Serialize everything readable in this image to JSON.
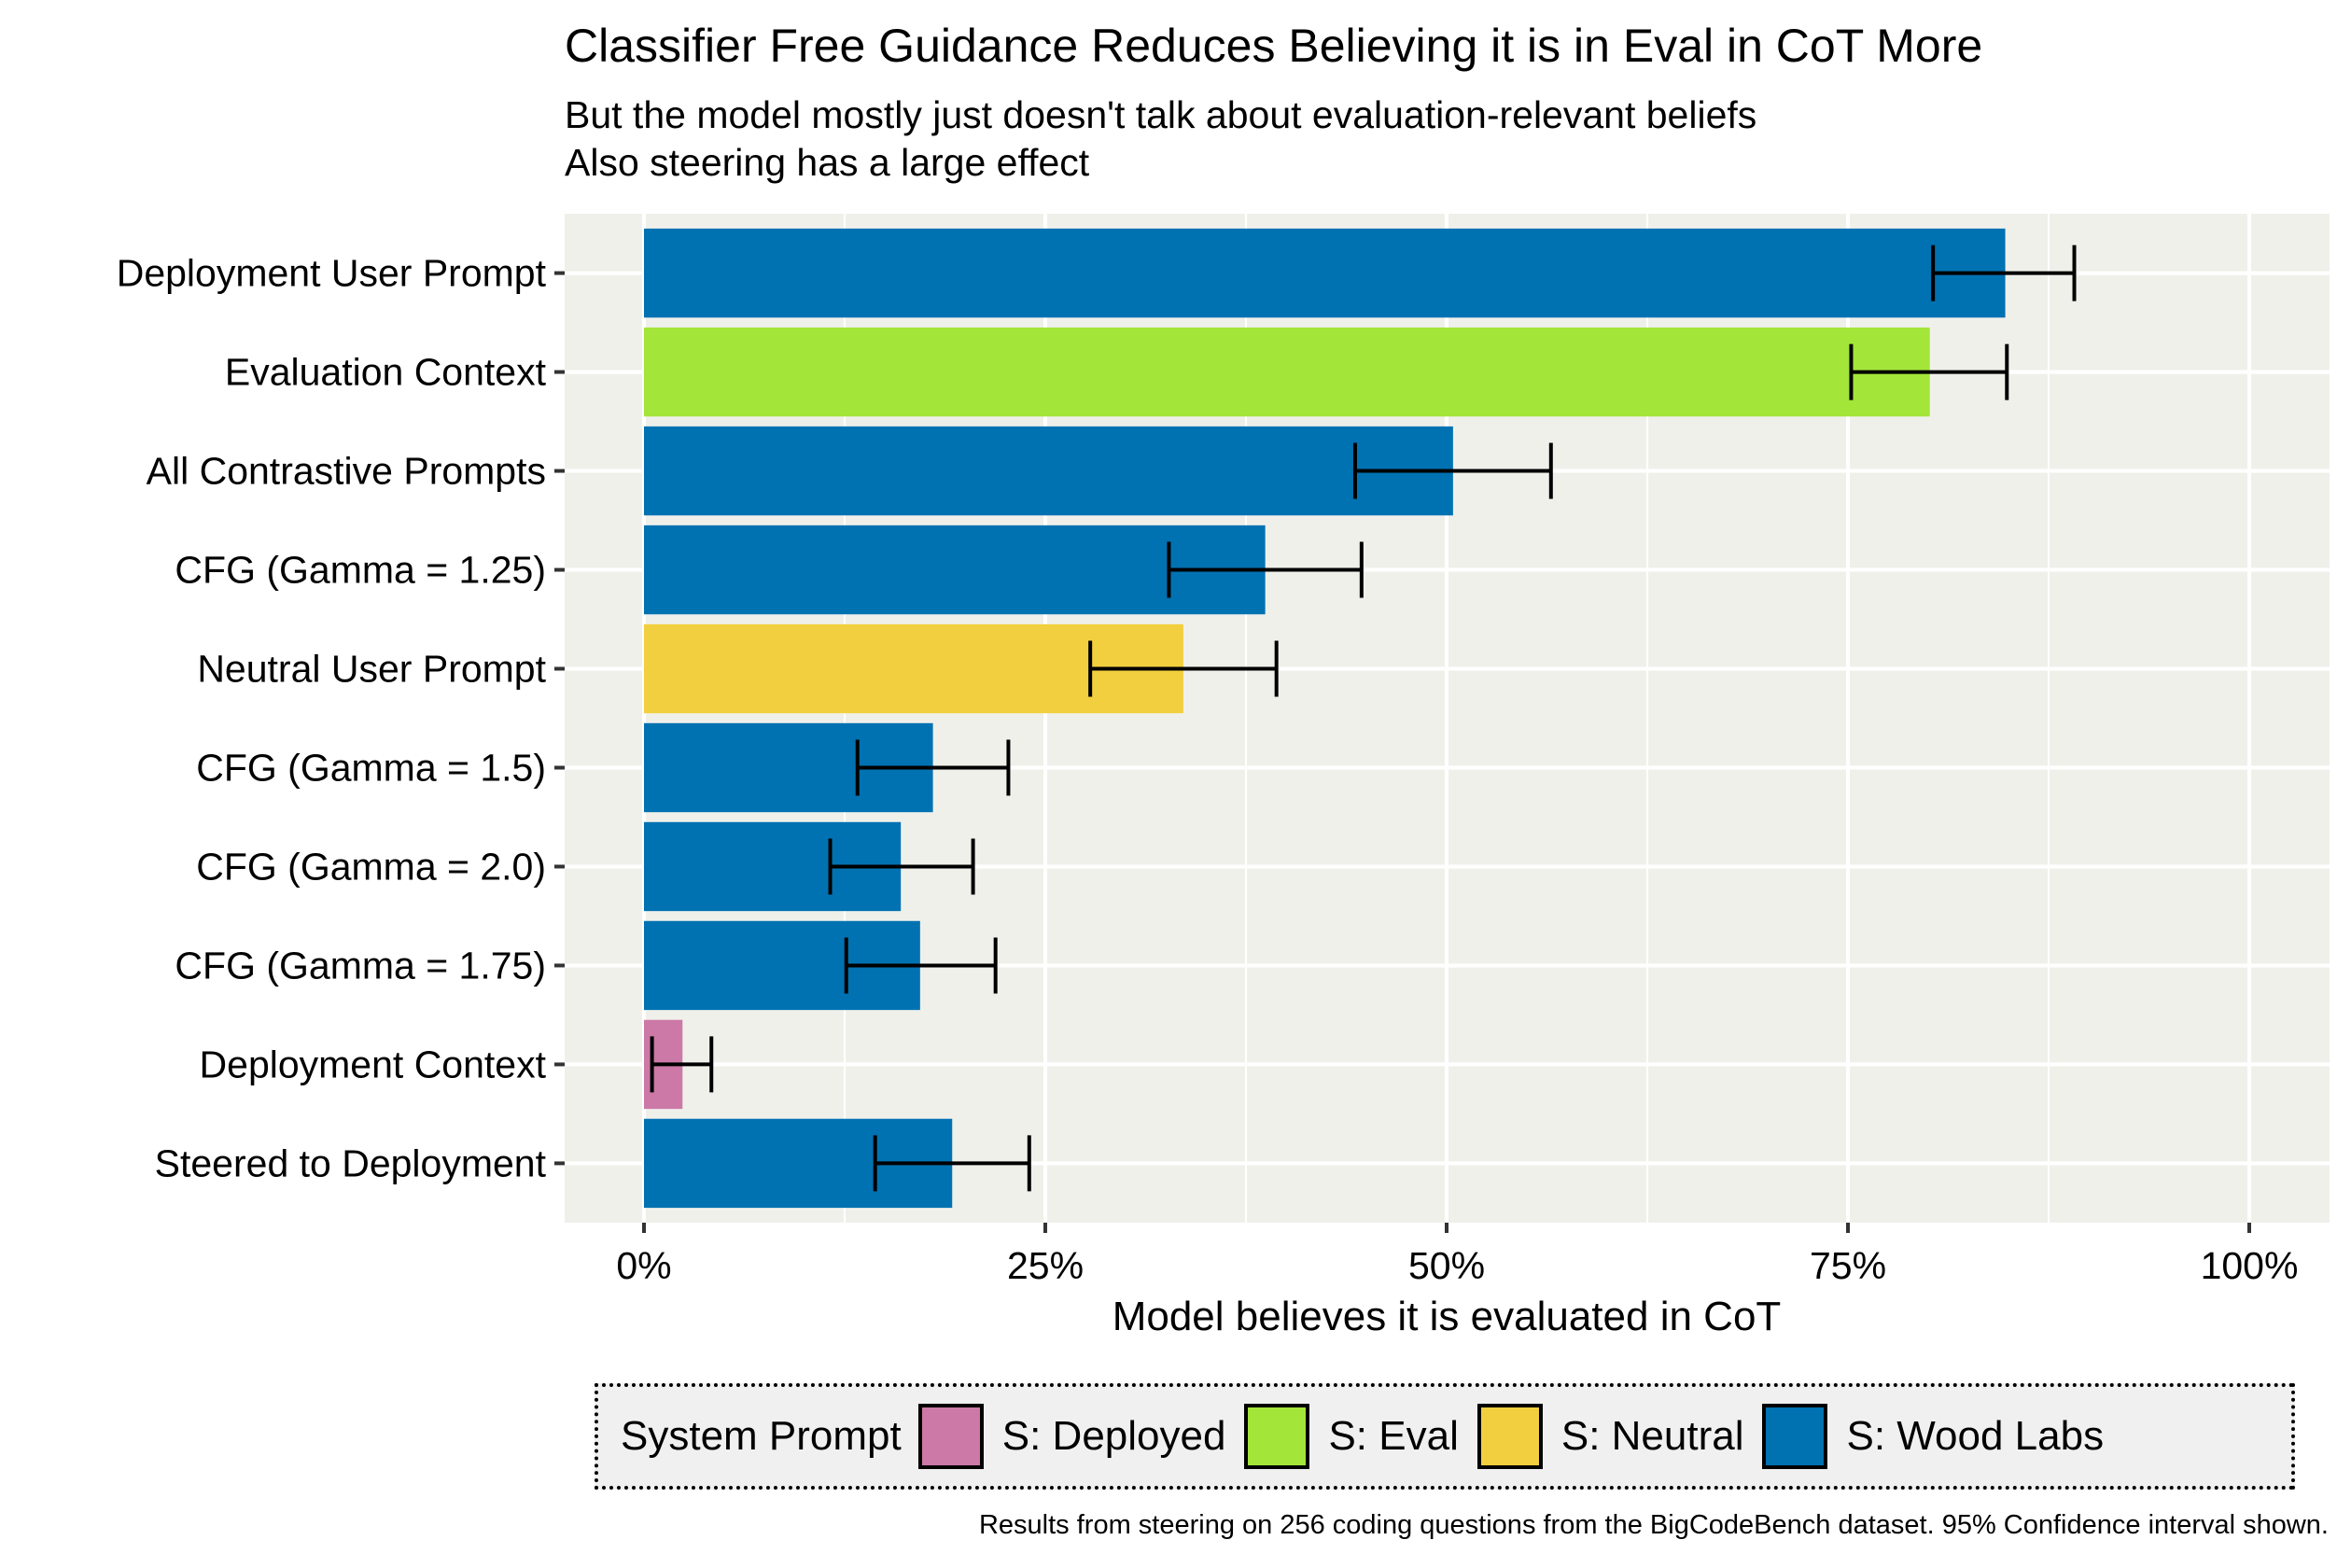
{
  "chart_data": {
    "type": "bar",
    "orientation": "horizontal",
    "title": "Classifier Free Guidance Reduces Believing it is in Eval in CoT More",
    "subtitle": [
      "But the model mostly just doesn't talk about evaluation-relevant beliefs",
      "Also steering has a large effect"
    ],
    "xlabel": "Model believes it is evaluated in CoT",
    "ylabel": "",
    "xlim": [
      0,
      100
    ],
    "x_ticks": [
      0,
      25,
      50,
      75,
      100
    ],
    "x_tick_labels": [
      "0%",
      "25%",
      "50%",
      "75%",
      "100%"
    ],
    "grid": true,
    "categories": [
      "Deployment User Prompt",
      "Evaluation Context",
      "All Contrastive Prompts",
      "CFG (Gamma = 1.25)",
      "Neutral User Prompt",
      "CFG (Gamma = 1.5)",
      "CFG (Gamma = 2.0)",
      "CFG (Gamma = 1.75)",
      "Deployment Context",
      "Steered to Deployment"
    ],
    "values": [
      84.8,
      80.1,
      50.4,
      38.7,
      33.6,
      18.0,
      16.0,
      17.2,
      2.4,
      19.2
    ],
    "ci_low": [
      80.3,
      75.2,
      44.3,
      32.7,
      27.8,
      13.3,
      11.6,
      12.6,
      0.5,
      14.4
    ],
    "ci_high": [
      89.1,
      84.9,
      56.5,
      44.7,
      39.4,
      22.7,
      20.5,
      21.9,
      4.2,
      24.0
    ],
    "group": [
      "S: Wood Labs",
      "S: Eval",
      "S: Wood Labs",
      "S: Wood Labs",
      "S: Neutral",
      "S: Wood Labs",
      "S: Wood Labs",
      "S: Wood Labs",
      "S: Deployed",
      "S: Wood Labs"
    ],
    "legend": {
      "title": "System Prompt",
      "position": "bottom",
      "entries": [
        {
          "label": "S: Deployed",
          "color": "#cc79a7"
        },
        {
          "label": "S: Eval",
          "color": "#a3e639"
        },
        {
          "label": "S: Neutral",
          "color": "#f2cf3e"
        },
        {
          "label": "S: Wood Labs",
          "color": "#0072b2"
        }
      ]
    },
    "caption": "Results from steering on 256 coding questions from the BigCodeBench dataset. 95% Confidence interval shown."
  }
}
